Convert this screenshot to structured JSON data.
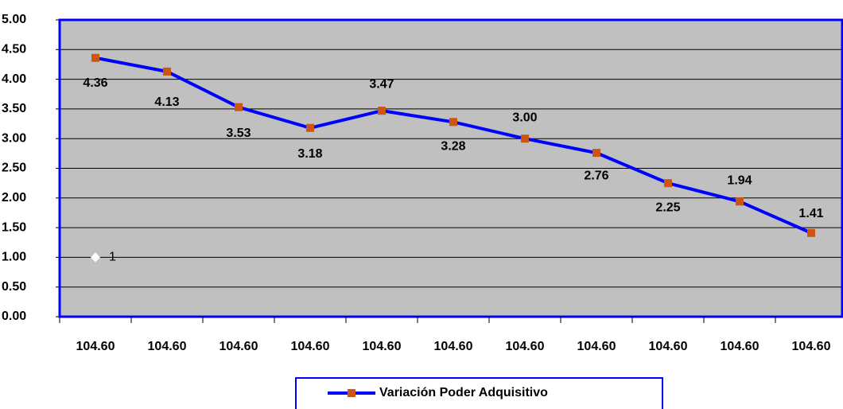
{
  "chart_data": {
    "type": "line",
    "categories": [
      "104.60",
      "104.60",
      "104.60",
      "104.60",
      "104.60",
      "104.60",
      "104.60",
      "104.60",
      "104.60",
      "104.60",
      "104.60"
    ],
    "series": [
      {
        "name": "Variación Poder Adquisitivo",
        "color": "#0000ff",
        "marker_color": "#cc5511",
        "values": [
          4.36,
          4.13,
          3.53,
          3.18,
          3.47,
          3.28,
          3.0,
          2.76,
          2.25,
          1.94,
          1.41
        ],
        "value_labels": [
          "4.36",
          "4.13",
          "3.53",
          "3.18",
          "3.47",
          "3.28",
          "3.00",
          "2.76",
          "2.25",
          "1.94",
          "1.41"
        ]
      },
      {
        "color": "#ffffff",
        "marker": "diamond",
        "values": [
          1,
          null,
          null,
          null,
          null,
          null,
          null,
          null,
          null,
          null,
          null
        ],
        "value_labels": [
          "1",
          null,
          null,
          null,
          null,
          null,
          null,
          null,
          null,
          null,
          null
        ]
      }
    ],
    "ylim": [
      0,
      5
    ],
    "yticks": [
      {
        "value": 0,
        "label": "0.00"
      },
      {
        "value": 0.5,
        "label": "0.50"
      },
      {
        "value": 1,
        "label": "1.00"
      },
      {
        "value": 1.5,
        "label": "1.50"
      },
      {
        "value": 2,
        "label": "2.00"
      },
      {
        "value": 2.5,
        "label": "2.50"
      },
      {
        "value": 3,
        "label": "3.00"
      },
      {
        "value": 3.5,
        "label": "3.50"
      },
      {
        "value": 4,
        "label": "4.00"
      },
      {
        "value": 4.5,
        "label": "4.50"
      },
      {
        "value": 5,
        "label": "5.00"
      }
    ],
    "grid": true,
    "plot_background": "#c0c0c0",
    "legend": "bottom"
  }
}
